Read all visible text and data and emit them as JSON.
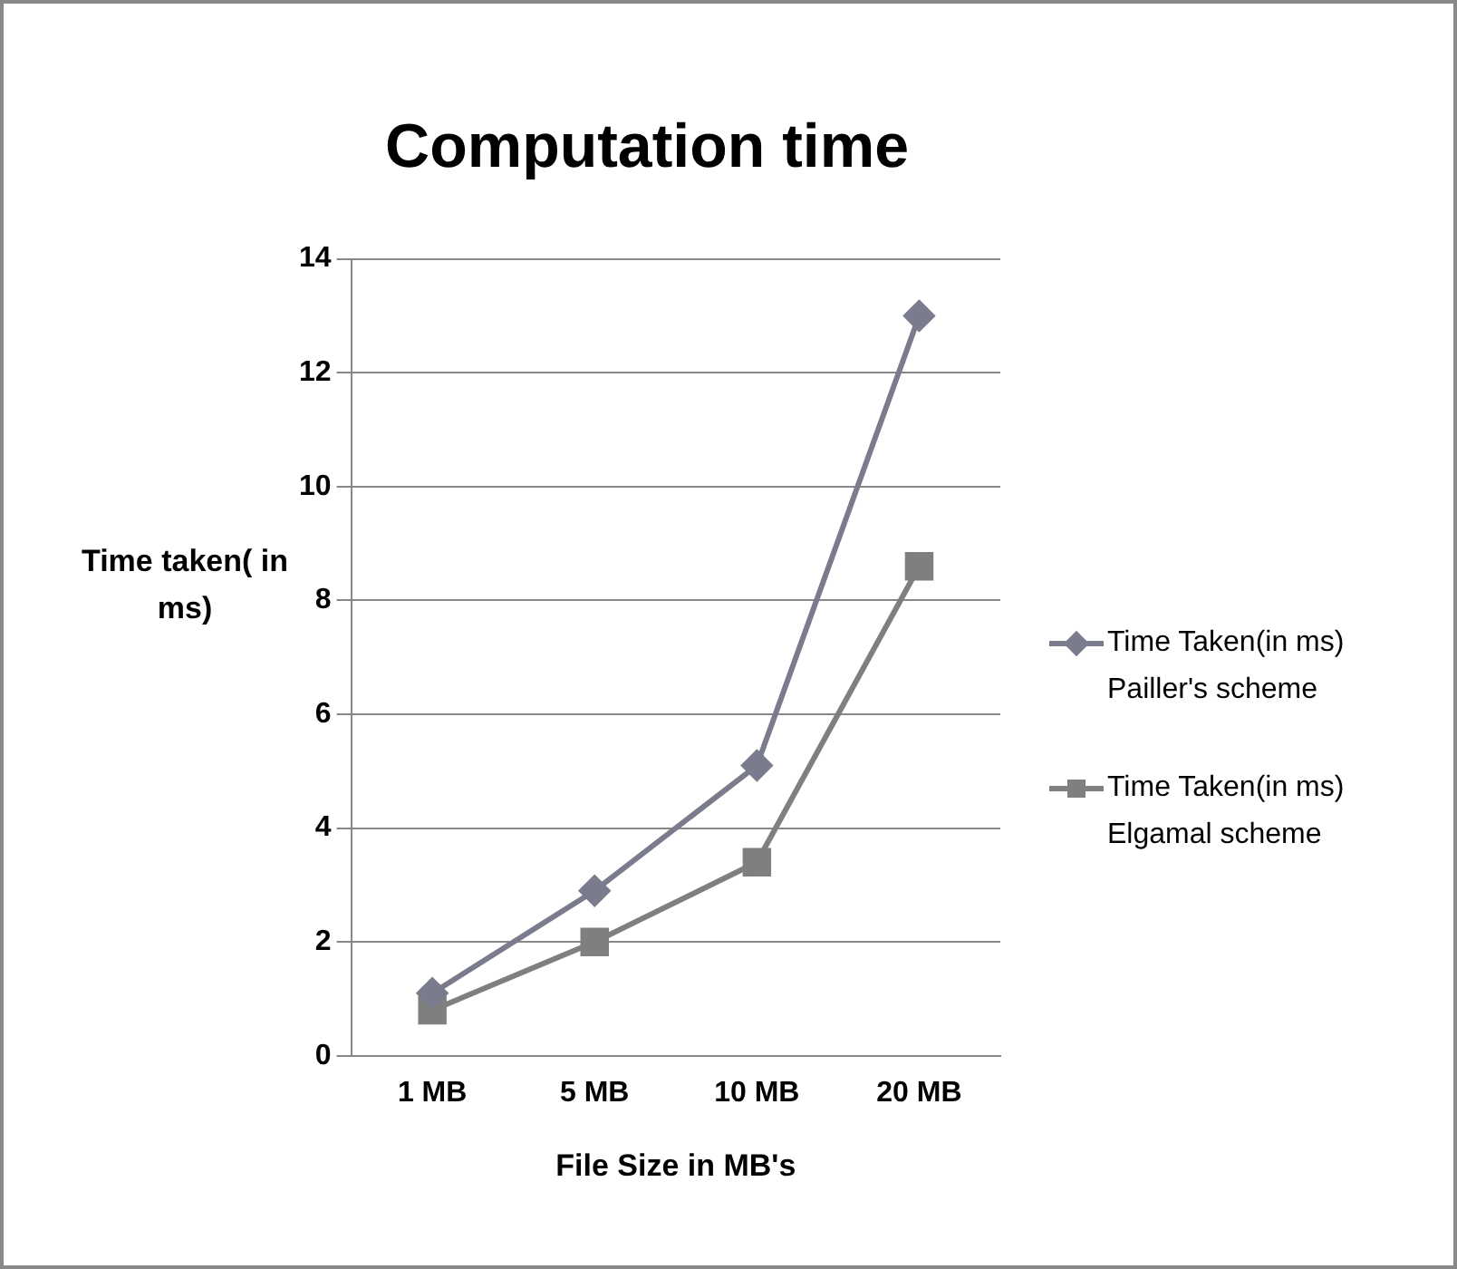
{
  "chart_data": {
    "type": "line",
    "title": "Computation time",
    "xlabel": "File Size in MB's",
    "ylabel": "Time taken( in ms)",
    "categories": [
      "1 MB",
      "5 MB",
      "10 MB",
      "20 MB"
    ],
    "series": [
      {
        "name": "Time Taken(in ms) Pailler's scheme",
        "color": "#7b7b8e",
        "marker": "diamond",
        "values": [
          1.1,
          2.9,
          5.1,
          13
        ]
      },
      {
        "name": "Time Taken(in ms) Elgamal scheme",
        "color": "#7f7f7f",
        "marker": "square",
        "values": [
          0.8,
          2.0,
          3.4,
          8.6
        ]
      }
    ],
    "ylim": [
      0,
      14
    ],
    "yticks": [
      0,
      2,
      4,
      6,
      8,
      10,
      12,
      14
    ],
    "grid": "y",
    "legend": "right"
  }
}
